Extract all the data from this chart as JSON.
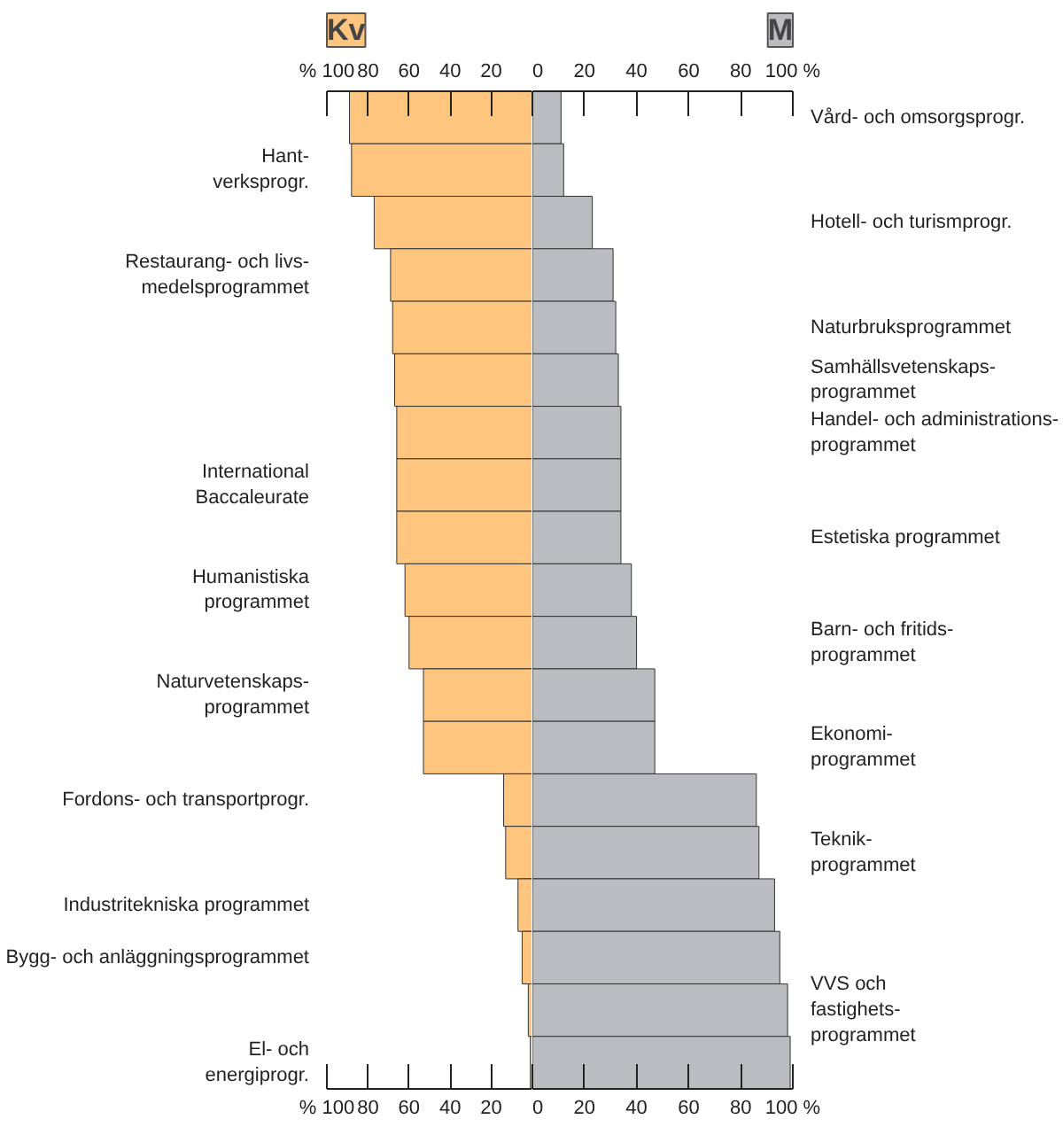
{
  "chart_data": [
    {
      "type": "bar",
      "orientation": "horizontal",
      "title": "Kv",
      "color": "#fec57f",
      "categories": [
        null,
        "Hant-\nverksprogr.",
        null,
        "Restaurang- och livs-\nmedelsprogrammet",
        null,
        null,
        null,
        "International\nBaccaleurate",
        null,
        "Humanistiska\nprogrammet",
        null,
        "Naturvetenskaps-\nprogrammet",
        null,
        "Fordons- och transportprogr.",
        null,
        "Industritekniska programmet",
        "Bygg- och anläggningsprogrammet",
        null,
        "El- och\nenergiprogr."
      ],
      "values": [
        89,
        88,
        77,
        69,
        68,
        67,
        66,
        66,
        66,
        62,
        60,
        53,
        53,
        14,
        13,
        7,
        5,
        2,
        1
      ],
      "xlim": [
        100,
        0
      ],
      "xticks": [
        {
          "value": 100,
          "label": "% 100"
        },
        80,
        60,
        40,
        20
      ],
      "x2lim": [
        100,
        0
      ],
      "x2ticks": [
        {
          "value": 100,
          "label": "% 100"
        },
        80,
        60,
        40,
        20
      ]
    },
    {
      "type": "bar",
      "orientation": "horizontal",
      "title": "M",
      "color": "#bbbcc0",
      "categories": [
        "Vård- och omsorgsprogr.",
        null,
        "Hotell- och turismprogr.",
        null,
        "Naturbruksprogrammet",
        "Samhällsvetenskaps-\nprogrammet",
        "Handel- och administrations-\nprogrammet",
        null,
        "Estetiska programmet",
        null,
        "Barn- och fritids-\nprogrammet",
        null,
        "Ekonomi-\nprogrammet",
        null,
        "Teknik-\nprogrammet",
        null,
        null,
        "VVS och\nfastighets-\nprogrammet",
        null
      ],
      "values": [
        11,
        12,
        23,
        31,
        32,
        33,
        34,
        34,
        34,
        38,
        40,
        47,
        47,
        86,
        87,
        93,
        95,
        98,
        99
      ],
      "xlim": [
        0,
        100
      ],
      "xticks": [
        0,
        20,
        40,
        60,
        80,
        {
          "value": 100,
          "label": "100 %"
        }
      ],
      "x2lim": [
        0,
        100
      ],
      "x2ticks": [
        0,
        20,
        40,
        60,
        80,
        {
          "value": 100,
          "label": "100 %"
        }
      ]
    }
  ]
}
